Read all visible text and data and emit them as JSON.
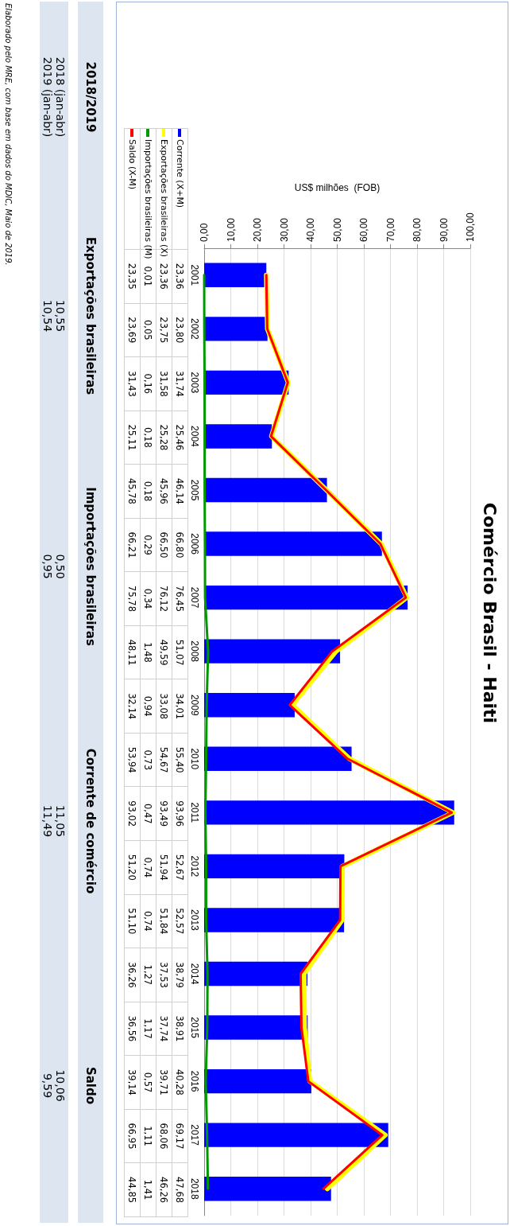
{
  "chart_data": [
    {
      "type": "bar",
      "orientation": "horizontal",
      "title": "Comércio Brasil - Haiti",
      "xlabel": "US$ milhões  (FOB)",
      "categories": [
        "2001",
        "2002",
        "2003",
        "2004",
        "2005",
        "2006",
        "2007",
        "2008",
        "2009",
        "2010",
        "2011",
        "2012",
        "2013",
        "2014",
        "2015",
        "2016",
        "2017",
        "2018"
      ],
      "series": [
        {
          "name": "Corrente (X+M)",
          "type": "bar",
          "color": "#0000ff",
          "values": [
            23.36,
            23.8,
            31.74,
            25.46,
            46.14,
            66.8,
            76.45,
            51.07,
            34.01,
            55.4,
            93.96,
            52.67,
            52.57,
            38.79,
            38.91,
            40.28,
            69.17,
            47.68
          ],
          "value_labels": [
            "23,36",
            "23,80",
            "31,74",
            "25,46",
            "46,14",
            "66,80",
            "76,45",
            "51,07",
            "34,01",
            "55,40",
            "93,96",
            "52,67",
            "52,57",
            "38,79",
            "38,91",
            "40,28",
            "69,17",
            "47,68"
          ]
        },
        {
          "name": "Exportações brasileiras (X)",
          "type": "line",
          "color": "#ffff00",
          "values": [
            23.36,
            23.75,
            31.58,
            25.28,
            45.96,
            66.5,
            76.12,
            49.59,
            33.08,
            54.67,
            93.49,
            51.94,
            51.84,
            37.53,
            37.74,
            39.71,
            68.06,
            46.26
          ],
          "value_labels": [
            "23,36",
            "23,75",
            "31,58",
            "25,28",
            "45,96",
            "66,50",
            "76,12",
            "49,59",
            "33,08",
            "54,67",
            "93,49",
            "51,94",
            "51,84",
            "37,53",
            "37,74",
            "39,71",
            "68,06",
            "46,26"
          ]
        },
        {
          "name": "Importações brasileiras (M)",
          "type": "line",
          "color": "#009900",
          "values": [
            0.01,
            0.05,
            0.16,
            0.18,
            0.18,
            0.29,
            0.34,
            1.48,
            0.94,
            0.73,
            0.47,
            0.74,
            0.74,
            1.27,
            1.17,
            0.57,
            1.11,
            1.41
          ],
          "value_labels": [
            "0,01",
            "0,05",
            "0,16",
            "0,18",
            "0,18",
            "0,29",
            "0,34",
            "1,48",
            "0,94",
            "0,73",
            "0,47",
            "0,74",
            "0,74",
            "1,27",
            "1,17",
            "0,57",
            "1,11",
            "1,41"
          ]
        },
        {
          "name": "Saldo (X-M)",
          "type": "line",
          "color": "#ff0000",
          "values": [
            23.35,
            23.69,
            31.43,
            25.11,
            45.78,
            66.21,
            75.78,
            48.11,
            32.14,
            53.94,
            93.02,
            51.2,
            51.1,
            36.26,
            36.56,
            39.14,
            66.95,
            44.85
          ],
          "value_labels": [
            "23,35",
            "23,69",
            "31,43",
            "25,11",
            "45,78",
            "66,21",
            "75,78",
            "48,11",
            "32,14",
            "53,94",
            "93,02",
            "51,20",
            "51,10",
            "36,26",
            "36,56",
            "39,14",
            "66,95",
            "44,85"
          ]
        }
      ],
      "xlim": [
        0,
        100
      ],
      "xticks": [
        {
          "value": 0,
          "label": "0,00"
        },
        {
          "value": 10,
          "label": "10,00"
        },
        {
          "value": 20,
          "label": "20,00"
        },
        {
          "value": 30,
          "label": "30,00"
        },
        {
          "value": 40,
          "label": "40,00"
        },
        {
          "value": 50,
          "label": "50,00"
        },
        {
          "value": 60,
          "label": "60,00"
        },
        {
          "value": 70,
          "label": "70,00"
        },
        {
          "value": 80,
          "label": "80,00"
        },
        {
          "value": 90,
          "label": "90,00"
        },
        {
          "value": 100,
          "label": "100,00"
        }
      ],
      "grid": "x",
      "legend": "top left"
    },
    {
      "type": "other",
      "title": "2018/2019",
      "categories": [
        "Exportações brasileiras",
        "Importações brasileiras",
        "Corrente de comércio",
        "Saldo"
      ],
      "y_categories": [
        "2018 (jan-abr)",
        "2019 (jan-abr)"
      ],
      "cell_labels": [
        [
          "10,55",
          "0,50",
          "11,05",
          "10,06"
        ],
        [
          "10,54",
          "0,95",
          "11,49",
          "9,59"
        ]
      ],
      "annotations": [
        "Elaborado pelo MRE, com base em dados do MDIC, Maio de 2019."
      ]
    }
  ]
}
